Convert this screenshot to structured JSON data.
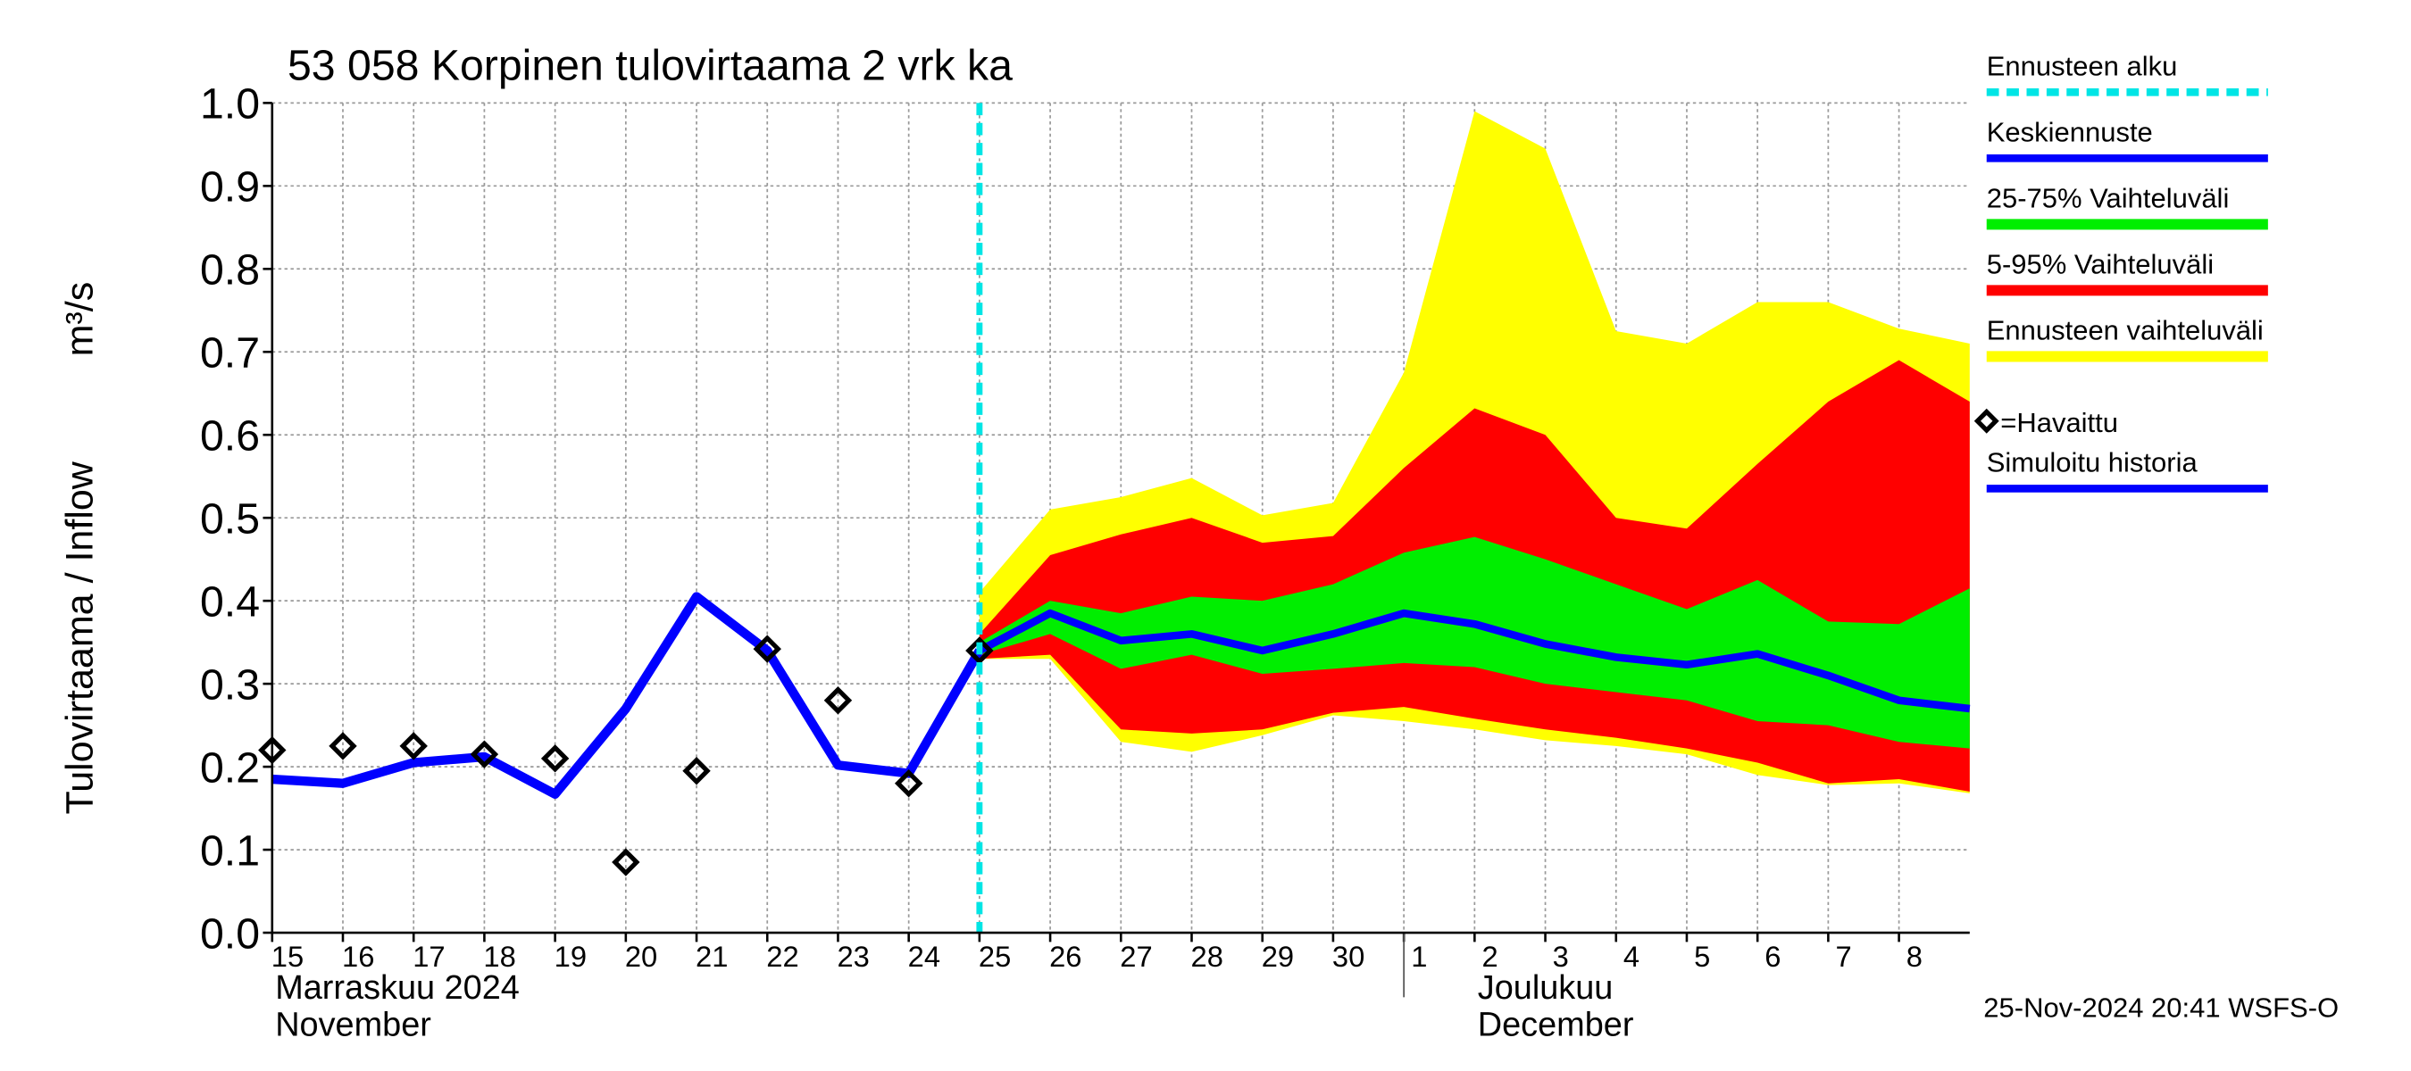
{
  "chart_data": {
    "type": "hydro_forecast",
    "title": "53 058 Korpinen tulovirtaama 2 vrk ka",
    "y_label": "Tulovirtaama / Inflow",
    "y_unit": "m³/s",
    "timestamp": "25-Nov-2024 20:41 WSFS-O",
    "month_labels": [
      {
        "x": "2024-11-15",
        "lines": [
          "Marraskuu 2024",
          "November"
        ]
      },
      {
        "x": "2024-12-01",
        "lines": [
          "Joulukuu",
          "December"
        ]
      }
    ],
    "xlim": [
      "2024-11-15",
      "2024-12-09"
    ],
    "xticks": [
      {
        "value": "2024-11-15",
        "label": "15"
      },
      {
        "value": "2024-11-16",
        "label": "16"
      },
      {
        "value": "2024-11-17",
        "label": "17"
      },
      {
        "value": "2024-11-18",
        "label": "18"
      },
      {
        "value": "2024-11-19",
        "label": "19"
      },
      {
        "value": "2024-11-20",
        "label": "20"
      },
      {
        "value": "2024-11-21",
        "label": "21"
      },
      {
        "value": "2024-11-22",
        "label": "22"
      },
      {
        "value": "2024-11-23",
        "label": "23"
      },
      {
        "value": "2024-11-24",
        "label": "24"
      },
      {
        "value": "2024-11-25",
        "label": "25"
      },
      {
        "value": "2024-11-26",
        "label": "26"
      },
      {
        "value": "2024-11-27",
        "label": "27"
      },
      {
        "value": "2024-11-28",
        "label": "28"
      },
      {
        "value": "2024-11-29",
        "label": "29"
      },
      {
        "value": "2024-11-30",
        "label": "30"
      },
      {
        "value": "2024-12-01",
        "label": "1"
      },
      {
        "value": "2024-12-02",
        "label": "2"
      },
      {
        "value": "2024-12-03",
        "label": "3"
      },
      {
        "value": "2024-12-04",
        "label": "4"
      },
      {
        "value": "2024-12-05",
        "label": "5"
      },
      {
        "value": "2024-12-06",
        "label": "6"
      },
      {
        "value": "2024-12-07",
        "label": "7"
      },
      {
        "value": "2024-12-08",
        "label": "8"
      }
    ],
    "ylim": [
      0,
      1
    ],
    "yticks": [
      {
        "value": 0,
        "label": "0.0"
      },
      0.1,
      0.2,
      0.3,
      0.4,
      0.5,
      0.6,
      0.7,
      0.8,
      0.9,
      {
        "value": 1,
        "label": "1.0"
      }
    ],
    "grid": true,
    "forecast_start": {
      "name": "Ennusteen alku",
      "x": "2024-11-25",
      "color": "#00e5e5"
    },
    "x_observed": [
      "2024-11-15",
      "2024-11-16",
      "2024-11-17",
      "2024-11-18",
      "2024-11-19",
      "2024-11-20",
      "2024-11-21",
      "2024-11-22",
      "2024-11-23",
      "2024-11-24",
      "2024-11-25"
    ],
    "x_forecast": [
      "2024-11-25",
      "2024-11-26",
      "2024-11-27",
      "2024-11-28",
      "2024-11-29",
      "2024-11-30",
      "2024-12-01",
      "2024-12-02",
      "2024-12-03",
      "2024-12-04",
      "2024-12-05",
      "2024-12-06",
      "2024-12-07",
      "2024-12-08",
      "2024-12-09"
    ],
    "series": [
      {
        "name": "Keskiennuste",
        "kind": "line",
        "x_key": "x_forecast",
        "color": "#0000ff",
        "values": [
          0.34,
          0.385,
          0.352,
          0.36,
          0.34,
          0.36,
          0.385,
          0.372,
          0.348,
          0.332,
          0.323,
          0.336,
          0.31,
          0.28,
          0.27
        ]
      },
      {
        "name": "25-75% Vaihteluväli",
        "kind": "band",
        "x_key": "x_forecast",
        "color": "#00ee00",
        "upper": [
          0.35,
          0.4,
          0.385,
          0.405,
          0.4,
          0.42,
          0.458,
          0.477,
          0.45,
          0.42,
          0.39,
          0.425,
          0.375,
          0.372,
          0.415
        ],
        "lower": [
          0.335,
          0.36,
          0.318,
          0.335,
          0.312,
          0.318,
          0.325,
          0.32,
          0.3,
          0.29,
          0.28,
          0.255,
          0.25,
          0.23,
          0.222
        ]
      },
      {
        "name": "5-95% Vaihteluväli",
        "kind": "band",
        "x_key": "x_forecast",
        "color": "#ff0000",
        "upper": [
          0.36,
          0.455,
          0.48,
          0.5,
          0.47,
          0.478,
          0.56,
          0.632,
          0.6,
          0.5,
          0.487,
          0.565,
          0.64,
          0.69,
          0.64
        ],
        "lower": [
          0.33,
          0.335,
          0.245,
          0.24,
          0.245,
          0.265,
          0.272,
          0.258,
          0.245,
          0.235,
          0.222,
          0.205,
          0.18,
          0.185,
          0.17
        ]
      },
      {
        "name": "Ennusteen vaihteluväli",
        "kind": "band",
        "x_key": "x_forecast",
        "color": "#ffff00",
        "upper": [
          0.41,
          0.51,
          0.525,
          0.548,
          0.503,
          0.518,
          0.675,
          0.99,
          0.945,
          0.725,
          0.71,
          0.76,
          0.76,
          0.728,
          0.71
        ],
        "lower": [
          0.33,
          0.33,
          0.23,
          0.218,
          0.238,
          0.262,
          0.255,
          0.245,
          0.232,
          0.225,
          0.215,
          0.19,
          0.178,
          0.18,
          0.168
        ]
      },
      {
        "name": "=Havaittu",
        "kind": "marker",
        "x_key": "x_observed",
        "color": "#000000",
        "values": [
          0.22,
          0.225,
          0.225,
          0.215,
          0.21,
          0.085,
          0.195,
          0.342,
          0.28,
          0.18,
          0.34
        ]
      },
      {
        "name": "Simuloitu historia",
        "kind": "line",
        "x_key": "x_observed",
        "color": "#0000ff",
        "values": [
          0.185,
          0.18,
          0.205,
          0.212,
          0.167,
          0.27,
          0.405,
          0.34,
          0.202,
          0.192,
          0.34
        ]
      }
    ]
  }
}
